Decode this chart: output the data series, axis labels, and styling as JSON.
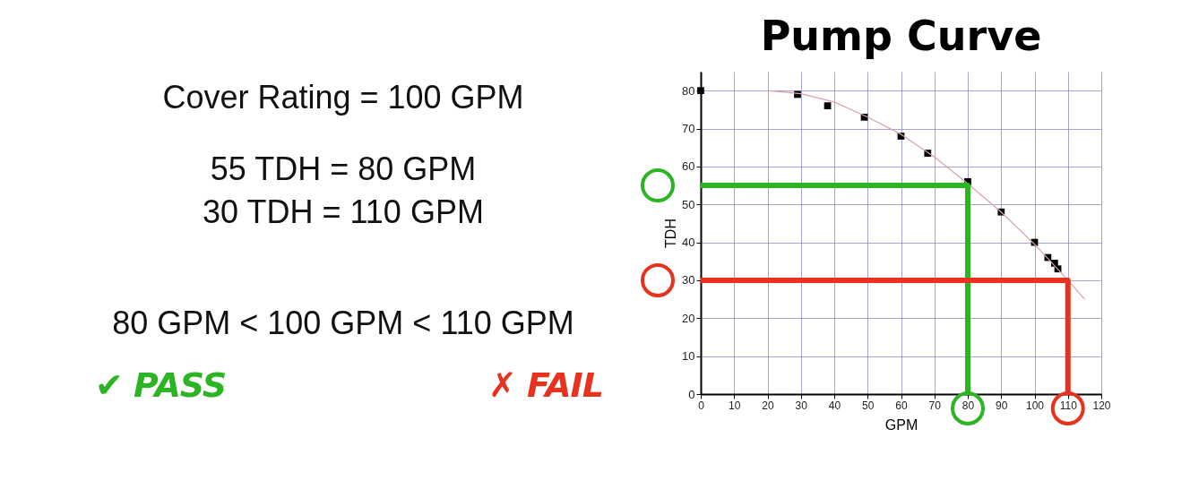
{
  "chart_data": {
    "type": "scatter",
    "title": "Pump Curve",
    "xlabel": "GPM",
    "ylabel": "TDH",
    "xlim": [
      0,
      120
    ],
    "ylim": [
      0,
      85
    ],
    "xticks": [
      0,
      10,
      20,
      30,
      40,
      50,
      60,
      70,
      80,
      90,
      100,
      110,
      120
    ],
    "yticks": [
      0,
      10,
      20,
      30,
      40,
      50,
      60,
      70,
      80
    ],
    "grid": true,
    "series": [
      {
        "type": "scatter",
        "marker": "square",
        "color": "#000000",
        "x": [
          0,
          29,
          38,
          49,
          60,
          68,
          80,
          90,
          100,
          104,
          106,
          107
        ],
        "values": [
          80,
          79,
          76,
          73,
          68,
          63.5,
          56,
          48,
          40,
          36,
          34.5,
          33
        ]
      },
      {
        "type": "line",
        "color": "#d9a3a8",
        "x": [
          20,
          30,
          40,
          50,
          60,
          70,
          80,
          90,
          100,
          110,
          115
        ],
        "values": [
          80,
          79.2,
          77,
          73,
          68.5,
          62.5,
          55.5,
          48,
          39.5,
          30,
          25
        ]
      },
      {
        "type": "line",
        "color": "#2cb523",
        "x": [
          0,
          80,
          80
        ],
        "values": [
          55,
          55,
          0
        ]
      },
      {
        "type": "line",
        "color": "#e8321e",
        "x": [
          0,
          110,
          110
        ],
        "values": [
          30,
          30,
          0
        ]
      }
    ],
    "annotations": [
      "Cover Rating = 100 GPM",
      "55 TDH = 80 GPM",
      "30 TDH = 110 GPM",
      "80 GPM < 100 GPM < 110 GPM",
      "✔ PASS",
      "✗ FAIL"
    ]
  }
}
